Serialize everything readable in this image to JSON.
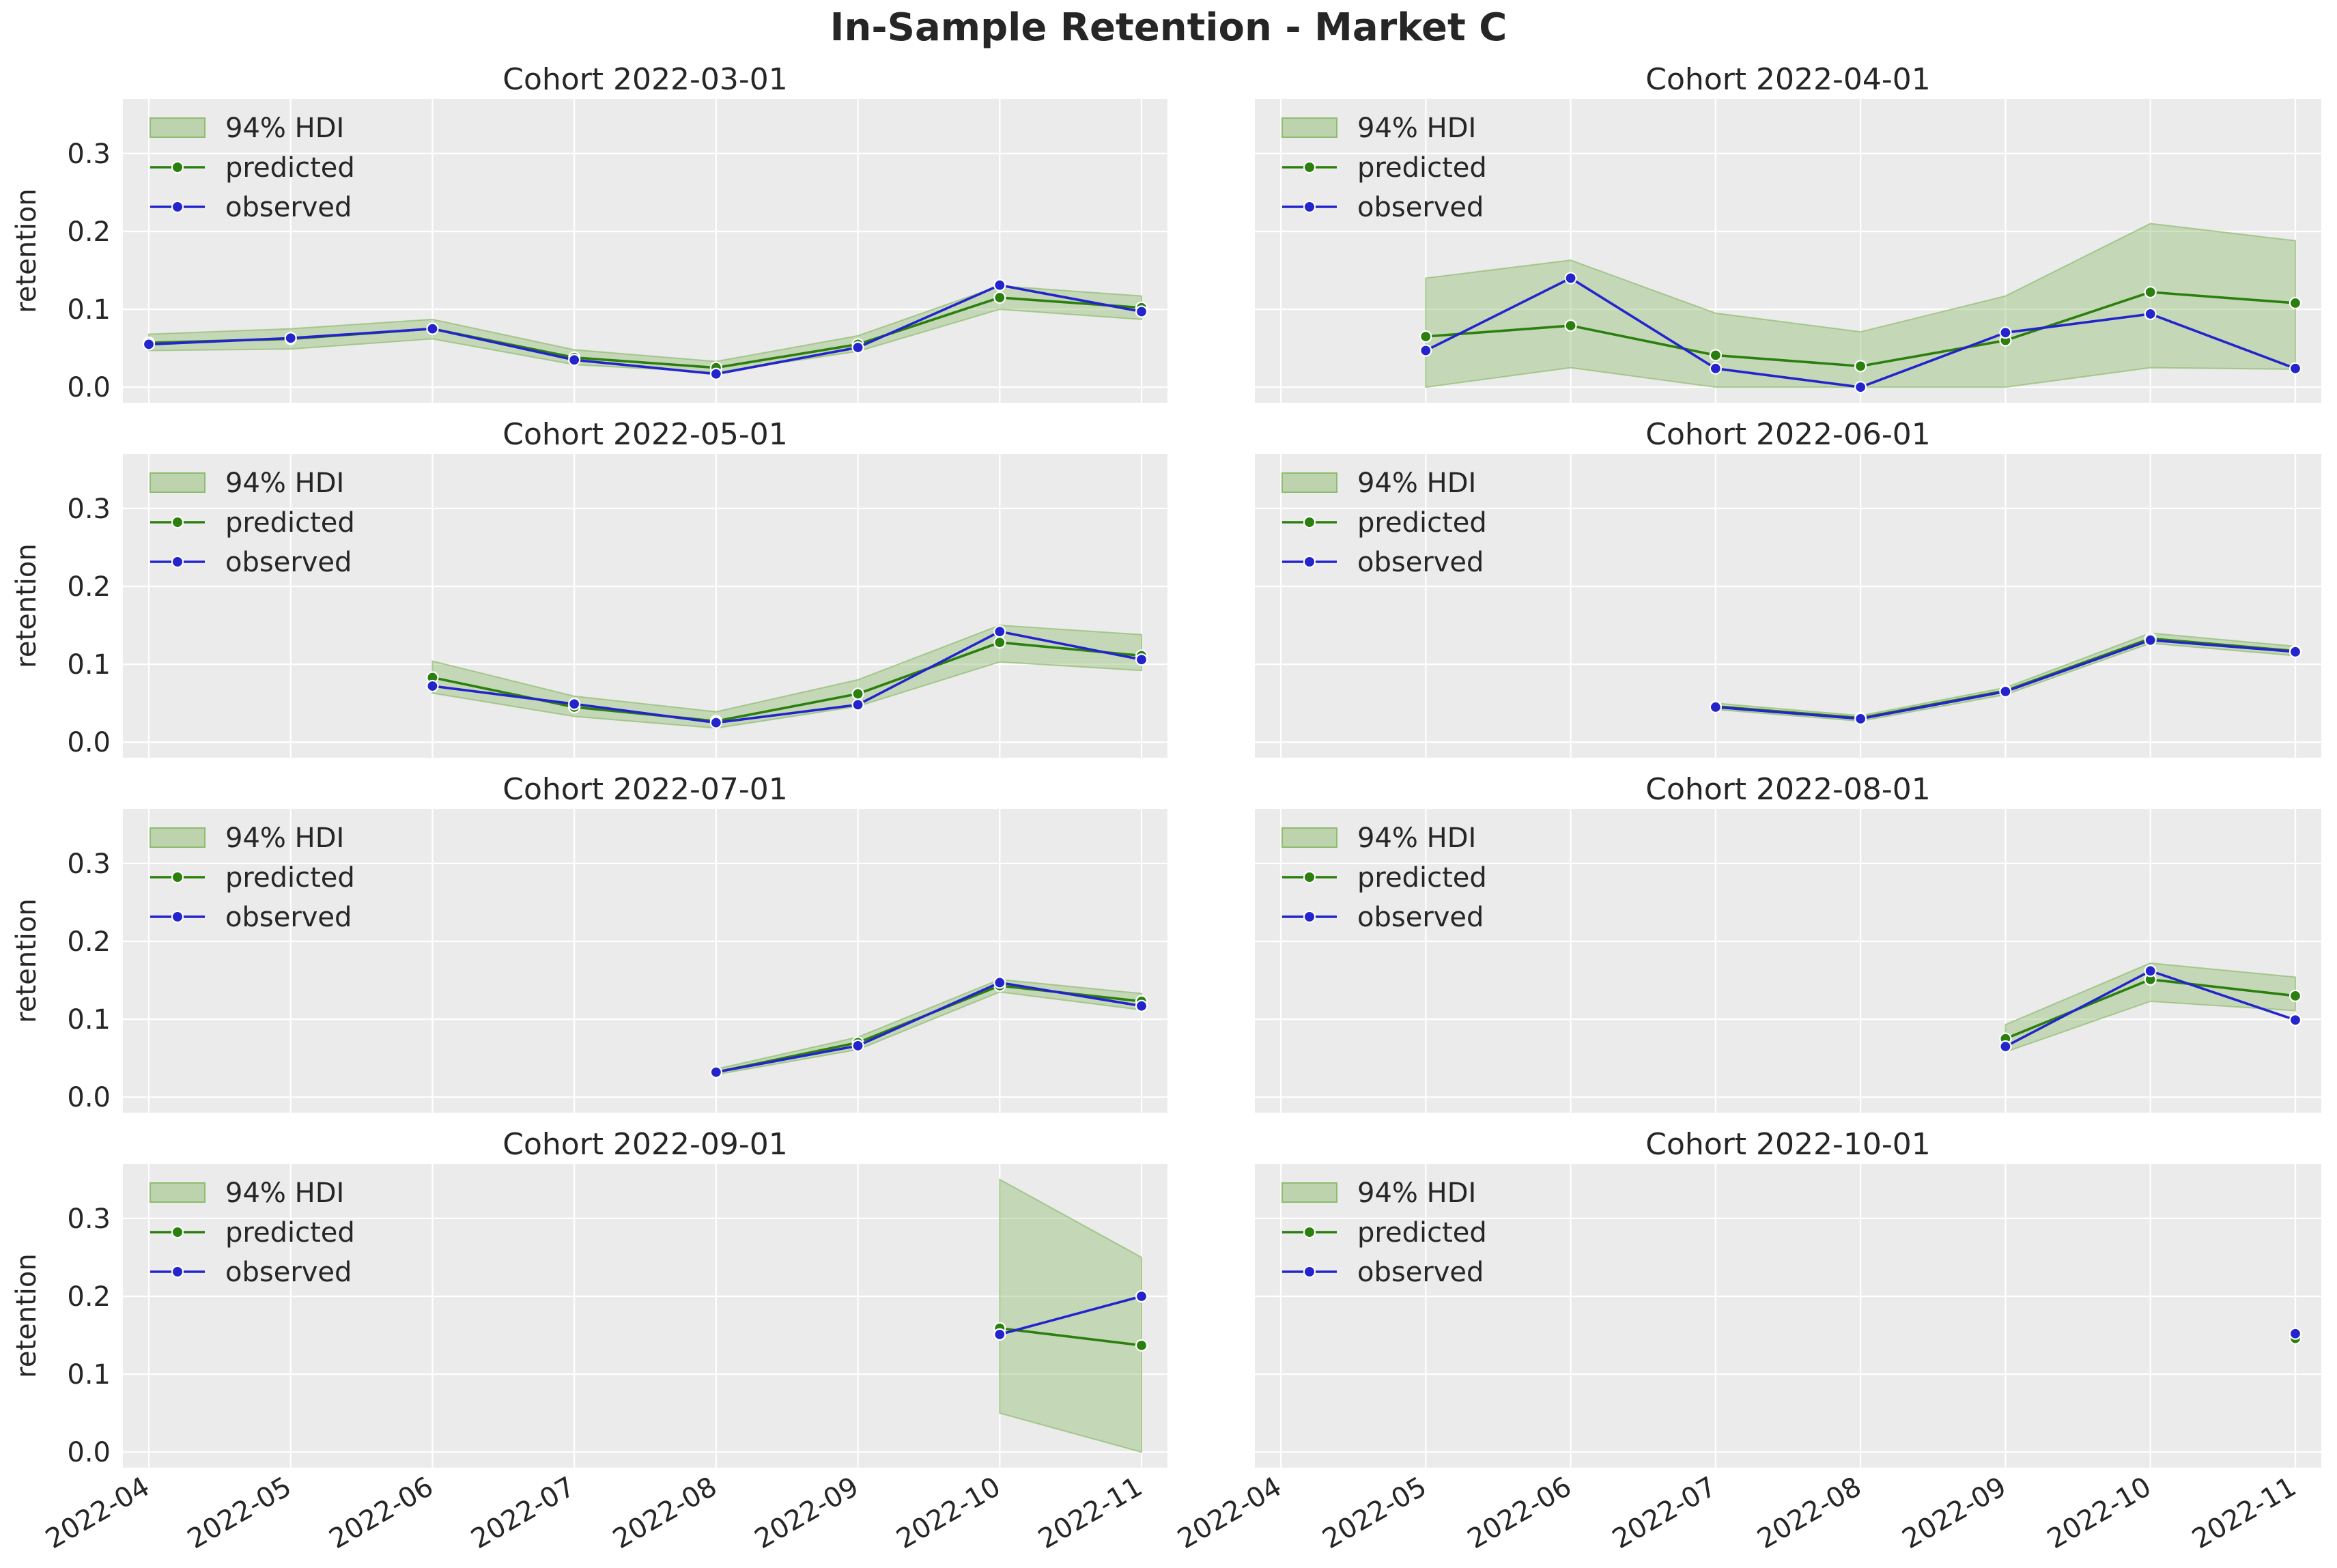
{
  "title": "In-Sample Retention - Market C",
  "colors": {
    "predicted": "#2a7f0e",
    "observed": "#2424cc",
    "hdi_fill": "#8fbc6f",
    "panel_bg": "#ebebeb",
    "grid": "#ffffff"
  },
  "chart_data": {
    "type": "line",
    "x_categories": [
      "2022-04",
      "2022-05",
      "2022-06",
      "2022-07",
      "2022-08",
      "2022-09",
      "2022-10",
      "2022-11"
    ],
    "ylabel": "retention",
    "ylim": [
      -0.02,
      0.37
    ],
    "yticks": [
      0.0,
      0.1,
      0.2,
      0.3
    ],
    "ytick_labels": [
      "0.0",
      "0.1",
      "0.2",
      "0.3"
    ],
    "grid": true,
    "legend_placement": "top-left",
    "legend_labels": [
      "94% HDI",
      "predicted",
      "observed"
    ],
    "panels": [
      {
        "title": "Cohort 2022-03-01",
        "dates": [
          "2022-04",
          "2022-05",
          "2022-06",
          "2022-07",
          "2022-08",
          "2022-09",
          "2022-10",
          "2022-11"
        ],
        "predicted": [
          0.057,
          0.062,
          0.075,
          0.038,
          0.025,
          0.055,
          0.115,
          0.102
        ],
        "observed": [
          0.055,
          0.063,
          0.075,
          0.035,
          0.017,
          0.051,
          0.131,
          0.097
        ],
        "hdi_low": [
          0.047,
          0.049,
          0.062,
          0.029,
          0.019,
          0.046,
          0.1,
          0.087
        ],
        "hdi_high": [
          0.068,
          0.075,
          0.087,
          0.048,
          0.033,
          0.066,
          0.13,
          0.117
        ]
      },
      {
        "title": "Cohort 2022-04-01",
        "dates": [
          "2022-05",
          "2022-06",
          "2022-07",
          "2022-08",
          "2022-09",
          "2022-10",
          "2022-11"
        ],
        "predicted": [
          0.065,
          0.079,
          0.041,
          0.027,
          0.06,
          0.122,
          0.108
        ],
        "observed": [
          0.047,
          0.14,
          0.024,
          0.0,
          0.07,
          0.094,
          0.024
        ],
        "hdi_low": [
          0.0,
          0.025,
          0.0,
          0.0,
          0.0,
          0.025,
          0.023
        ],
        "hdi_high": [
          0.14,
          0.163,
          0.095,
          0.071,
          0.117,
          0.21,
          0.188
        ]
      },
      {
        "title": "Cohort 2022-05-01",
        "dates": [
          "2022-06",
          "2022-07",
          "2022-08",
          "2022-09",
          "2022-10",
          "2022-11"
        ],
        "predicted": [
          0.083,
          0.045,
          0.027,
          0.062,
          0.128,
          0.111
        ],
        "observed": [
          0.072,
          0.049,
          0.025,
          0.048,
          0.142,
          0.106
        ],
        "hdi_low": [
          0.063,
          0.033,
          0.018,
          0.046,
          0.103,
          0.092
        ],
        "hdi_high": [
          0.104,
          0.059,
          0.039,
          0.08,
          0.15,
          0.138
        ]
      },
      {
        "title": "Cohort 2022-06-01",
        "dates": [
          "2022-07",
          "2022-08",
          "2022-09",
          "2022-10",
          "2022-11"
        ],
        "predicted": [
          0.046,
          0.031,
          0.066,
          0.133,
          0.117
        ],
        "observed": [
          0.045,
          0.03,
          0.065,
          0.131,
          0.116
        ],
        "hdi_low": [
          0.042,
          0.027,
          0.061,
          0.127,
          0.111
        ],
        "hdi_high": [
          0.05,
          0.034,
          0.07,
          0.14,
          0.123
        ]
      },
      {
        "title": "Cohort 2022-07-01",
        "dates": [
          "2022-08",
          "2022-09",
          "2022-10",
          "2022-11"
        ],
        "predicted": [
          0.032,
          0.07,
          0.143,
          0.123
        ],
        "observed": [
          0.032,
          0.066,
          0.147,
          0.117
        ],
        "hdi_low": [
          0.029,
          0.061,
          0.135,
          0.112
        ],
        "hdi_high": [
          0.036,
          0.077,
          0.151,
          0.133
        ]
      },
      {
        "title": "Cohort 2022-08-01",
        "dates": [
          "2022-09",
          "2022-10",
          "2022-11"
        ],
        "predicted": [
          0.075,
          0.151,
          0.13
        ],
        "observed": [
          0.065,
          0.162,
          0.099
        ],
        "hdi_low": [
          0.058,
          0.123,
          0.111
        ],
        "hdi_high": [
          0.093,
          0.172,
          0.154
        ]
      },
      {
        "title": "Cohort 2022-09-01",
        "dates": [
          "2022-10",
          "2022-11"
        ],
        "predicted": [
          0.159,
          0.137
        ],
        "observed": [
          0.151,
          0.2
        ],
        "hdi_low": [
          0.05,
          0.0
        ],
        "hdi_high": [
          0.35,
          0.25
        ]
      },
      {
        "title": "Cohort 2022-10-01",
        "dates": [
          "2022-11"
        ],
        "predicted": [
          0.146
        ],
        "observed": [
          0.152
        ],
        "hdi_low": [
          0.14
        ],
        "hdi_high": [
          0.152
        ]
      }
    ]
  }
}
